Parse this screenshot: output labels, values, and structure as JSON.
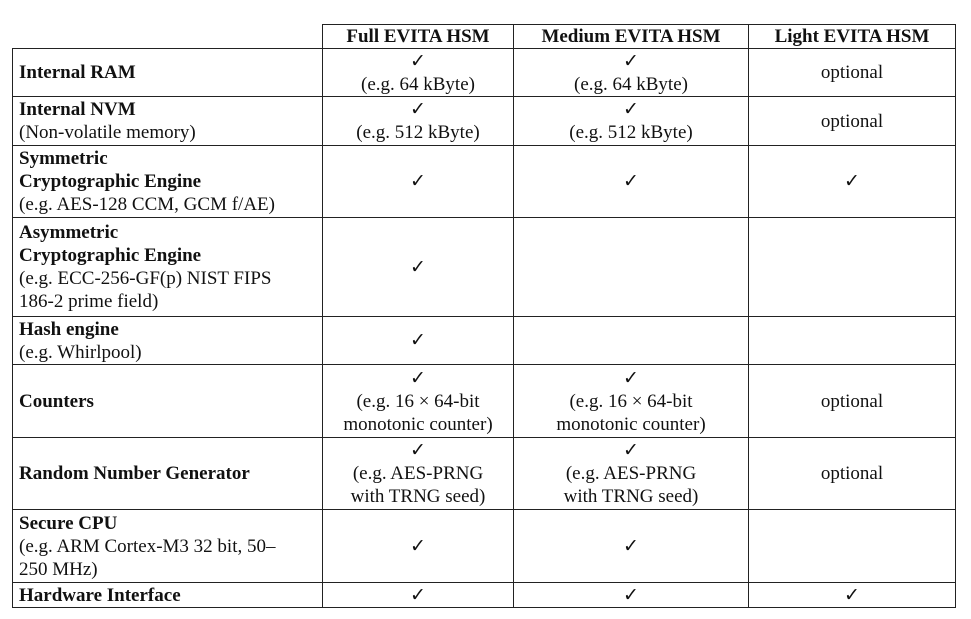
{
  "table": {
    "header": [
      "Full EVITA HSM",
      "Medium EVITA HSM",
      "Light EVITA HSM"
    ],
    "rows": [
      {
        "feature": [
          "Internal RAM"
        ],
        "cells": [
          {
            "check": "✓",
            "note": [
              "(e.g. 64 kByte)"
            ]
          },
          {
            "check": "✓",
            "note": [
              "(e.g. 64 kByte)"
            ]
          },
          {
            "text": "optional"
          }
        ]
      },
      {
        "feature": [
          "Internal NVM"
        ],
        "description": [
          "(Non-volatile memory)"
        ],
        "cells": [
          {
            "check": "✓",
            "note": [
              "(e.g. 512 kByte)"
            ]
          },
          {
            "check": "✓",
            "note": [
              "(e.g. 512 kByte)"
            ]
          },
          {
            "text": "optional"
          }
        ]
      },
      {
        "feature": [
          "Symmetric",
          "Cryptographic Engine"
        ],
        "description": [
          "(e.g. AES-128 CCM, GCM f/AE)"
        ],
        "cells": [
          {
            "check": "✓"
          },
          {
            "check": "✓"
          },
          {
            "check": "✓"
          }
        ]
      },
      {
        "feature": [
          "Asymmetric",
          "Cryptographic Engine"
        ],
        "description": [
          "(e.g. ECC-256-GF(p) NIST FIPS",
          "186-2 prime field)"
        ],
        "cells": [
          {
            "check": "✓"
          },
          null,
          null
        ]
      },
      {
        "feature": [
          "Hash engine"
        ],
        "description": [
          "(e.g. Whirlpool)"
        ],
        "cells": [
          {
            "check": "✓"
          },
          null,
          null
        ]
      },
      {
        "feature": [
          "Counters"
        ],
        "cells": [
          {
            "check": "✓",
            "note": [
              "(e.g. 16 × 64-bit",
              "monotonic counter)"
            ]
          },
          {
            "check": "✓",
            "note": [
              "(e.g. 16 × 64-bit",
              "monotonic counter)"
            ]
          },
          {
            "text": "optional"
          }
        ]
      },
      {
        "feature": [
          "Random Number Generator"
        ],
        "cells": [
          {
            "check": "✓",
            "note": [
              "(e.g. AES-PRNG",
              "with TRNG seed)"
            ]
          },
          {
            "check": "✓",
            "note": [
              "(e.g. AES-PRNG",
              "with TRNG seed)"
            ]
          },
          {
            "text": "optional"
          }
        ]
      },
      {
        "feature": [
          "Secure CPU"
        ],
        "description": [
          "(e.g. ARM Cortex-M3 32 bit, 50–",
          "250 MHz)"
        ],
        "cells": [
          {
            "check": "✓"
          },
          {
            "check": "✓"
          },
          null
        ]
      },
      {
        "feature": [
          "Hardware Interface"
        ],
        "cells": [
          {
            "check": "✓"
          },
          {
            "check": "✓"
          },
          {
            "check": "✓"
          }
        ]
      }
    ]
  }
}
